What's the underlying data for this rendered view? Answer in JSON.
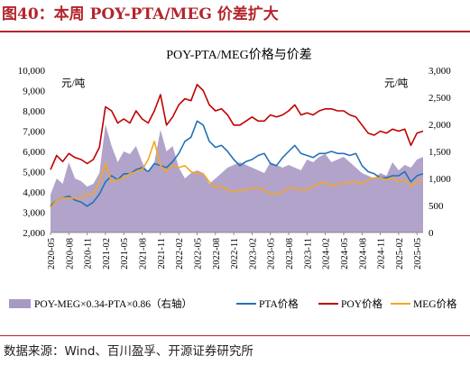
{
  "figure_title": "图40：本周 POY-PTA/MEG 价差扩大",
  "source": "数据来源：Wind、百川盈孚、开源证券研究所",
  "chart_data": {
    "type": "line",
    "title": "POY-PTA/MEG价格与价差",
    "y_left_unit": "元/吨",
    "y_right_unit": "元/吨",
    "ylim_left": [
      2000,
      10000
    ],
    "ylim_right": [
      0,
      3000
    ],
    "y_left_ticks": [
      "2,000",
      "3,000",
      "4,000",
      "5,000",
      "6,000",
      "7,000",
      "8,000",
      "9,000",
      "10,000"
    ],
    "y_right_ticks": [
      "0",
      "500",
      "1,000",
      "1,500",
      "2,000",
      "2,500",
      "3,000"
    ],
    "x_ticks": [
      "2020-05",
      "2020-08",
      "2020-11",
      "2021-02",
      "2021-05",
      "2021-08",
      "2021-11",
      "2022-02",
      "2022-05",
      "2022-08",
      "2022-11",
      "2023-02",
      "2023-05",
      "2023-08",
      "2023-11",
      "2024-02",
      "2024-05",
      "2024-08",
      "2024-11",
      "2025-02",
      "2025-05"
    ],
    "x": [
      "2020-05",
      "2020-06",
      "2020-07",
      "2020-08",
      "2020-09",
      "2020-10",
      "2020-11",
      "2020-12",
      "2021-01",
      "2021-02",
      "2021-03",
      "2021-04",
      "2021-05",
      "2021-06",
      "2021-07",
      "2021-08",
      "2021-09",
      "2021-10",
      "2021-11",
      "2021-12",
      "2022-01",
      "2022-02",
      "2022-03",
      "2022-04",
      "2022-05",
      "2022-06",
      "2022-07",
      "2022-08",
      "2022-09",
      "2022-10",
      "2022-11",
      "2022-12",
      "2023-01",
      "2023-02",
      "2023-03",
      "2023-04",
      "2023-05",
      "2023-06",
      "2023-07",
      "2023-08",
      "2023-09",
      "2023-10",
      "2023-11",
      "2023-12",
      "2024-01",
      "2024-02",
      "2024-03",
      "2024-04",
      "2024-05",
      "2024-06",
      "2024-07",
      "2024-08",
      "2024-09",
      "2024-10",
      "2024-11",
      "2024-12",
      "2025-01",
      "2025-02",
      "2025-03",
      "2025-04",
      "2025-05",
      "2025-06"
    ],
    "series": [
      {
        "name": "POY-MEG×0.34-PTA×0.86（右轴）",
        "type": "area",
        "axis": "right",
        "color": "#a899c4",
        "values": [
          700,
          1000,
          900,
          1300,
          1000,
          950,
          850,
          900,
          1100,
          2000,
          1600,
          1300,
          1500,
          1450,
          1600,
          1300,
          1100,
          1300,
          1900,
          1500,
          1600,
          1200,
          1000,
          1100,
          1150,
          1100,
          900,
          1000,
          1100,
          1200,
          1250,
          1300,
          1250,
          1200,
          1150,
          1100,
          1300,
          1250,
          1200,
          1250,
          1200,
          1150,
          1350,
          1300,
          1400,
          1450,
          1300,
          1350,
          1400,
          1300,
          1200,
          1100,
          1050,
          1000,
          1100,
          1050,
          1300,
          1150,
          1250,
          1200,
          1350,
          1400
        ]
      },
      {
        "name": "PTA价格",
        "axis": "left",
        "color": "#2471b8",
        "values": [
          3300,
          3600,
          3700,
          3800,
          3600,
          3500,
          3300,
          3500,
          3900,
          4500,
          4800,
          4600,
          4900,
          4900,
          5100,
          5200,
          5000,
          5400,
          5300,
          5200,
          5500,
          5900,
          6500,
          6700,
          7500,
          7300,
          6500,
          6200,
          6300,
          6000,
          5600,
          5300,
          5500,
          5600,
          5800,
          5900,
          5400,
          5300,
          5700,
          6000,
          6300,
          5900,
          5800,
          5700,
          5900,
          5900,
          6000,
          5900,
          5900,
          5800,
          5900,
          5300,
          5000,
          4900,
          4700,
          4700,
          4800,
          4800,
          5000,
          4500,
          4800,
          4900
        ]
      },
      {
        "name": "POY价格",
        "axis": "left",
        "color": "#c00000",
        "values": [
          5100,
          5800,
          5500,
          5900,
          5700,
          5600,
          5400,
          5600,
          6200,
          8200,
          8000,
          7400,
          7600,
          7400,
          8000,
          7600,
          7400,
          8000,
          8800,
          7300,
          7700,
          8300,
          8600,
          8500,
          9300,
          9000,
          8300,
          8000,
          8100,
          7800,
          7300,
          7300,
          7500,
          7700,
          7500,
          7500,
          7800,
          7700,
          7800,
          8000,
          8300,
          7800,
          7900,
          7800,
          8000,
          8100,
          8100,
          8000,
          8000,
          7800,
          7700,
          7300,
          6900,
          6800,
          7000,
          6900,
          7100,
          7000,
          7100,
          6300,
          6900,
          7000
        ]
      },
      {
        "name": "MEG价格",
        "axis": "left",
        "color": "#f5a623",
        "values": [
          3200,
          3600,
          3700,
          3700,
          3700,
          3700,
          3900,
          3900,
          4500,
          5400,
          4500,
          4600,
          4700,
          4900,
          5000,
          5100,
          5600,
          6500,
          5300,
          5000,
          5300,
          5200,
          5300,
          5000,
          4900,
          4900,
          4500,
          4200,
          4300,
          4100,
          4000,
          4100,
          4100,
          4200,
          4200,
          4100,
          3900,
          3900,
          4000,
          4200,
          4200,
          4100,
          4100,
          4300,
          4400,
          4500,
          4300,
          4400,
          4400,
          4500,
          4500,
          4400,
          4600,
          4700,
          4700,
          4600,
          4700,
          4500,
          4600,
          4300,
          4500,
          4600
        ]
      }
    ],
    "grid": false,
    "legend_position": "bottom"
  }
}
